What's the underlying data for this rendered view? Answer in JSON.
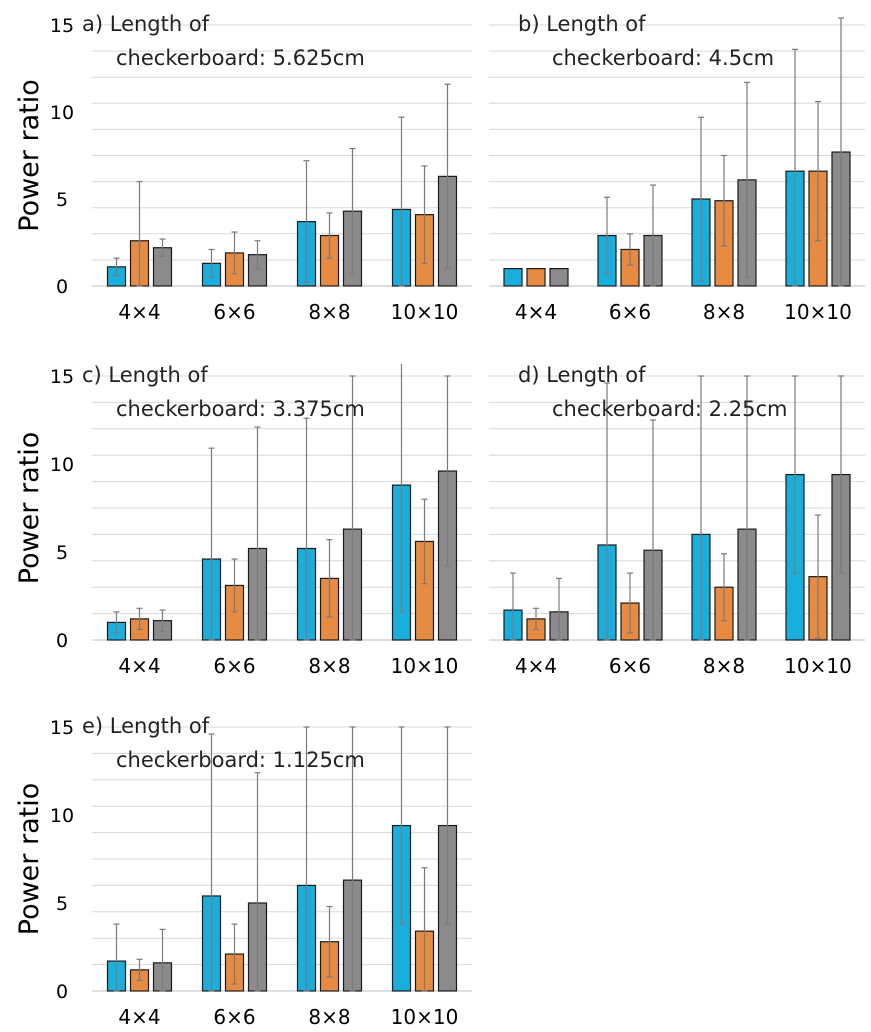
{
  "chart_data": [
    {
      "type": "bar",
      "title": "a) Length of",
      "subtitle": "checkerboard: 5.625cm",
      "ylabel": "Power ratio",
      "categories": [
        "4×4",
        "6×6",
        "8×8",
        "10×10"
      ],
      "ylim": [
        0,
        15
      ],
      "yticks": [
        0,
        5,
        10,
        15
      ],
      "grid": true,
      "series": [
        {
          "color": "#1aaedc",
          "values": [
            1.1,
            1.3,
            3.7,
            4.4
          ],
          "errors": [
            0.5,
            0.8,
            3.5,
            5.3
          ]
        },
        {
          "color": "#e78b43",
          "values": [
            2.6,
            1.9,
            2.9,
            4.1
          ],
          "errors": [
            3.4,
            1.2,
            1.3,
            2.8
          ]
        },
        {
          "color": "#8c8a8c",
          "values": [
            2.2,
            1.8,
            4.3,
            6.3
          ],
          "errors": [
            0.5,
            0.8,
            3.6,
            5.3
          ]
        }
      ]
    },
    {
      "type": "bar",
      "title": "b) Length of",
      "subtitle": "checkerboard: 4.5cm",
      "ylabel": "",
      "categories": [
        "4×4",
        "6×6",
        "8×8",
        "10×10"
      ],
      "ylim": [
        0,
        15
      ],
      "yticks": [],
      "grid": true,
      "series": [
        {
          "color": "#1aaedc",
          "values": [
            1.0,
            2.9,
            5.0,
            6.6
          ],
          "errors": [
            0,
            2.2,
            4.7,
            7.0
          ]
        },
        {
          "color": "#e78b43",
          "values": [
            1.0,
            2.1,
            4.9,
            6.6
          ],
          "errors": [
            0,
            0.9,
            2.6,
            4.0
          ]
        },
        {
          "color": "#8c8a8c",
          "values": [
            1.0,
            2.9,
            6.1,
            7.7
          ],
          "errors": [
            0,
            2.9,
            5.6,
            7.7
          ]
        }
      ]
    },
    {
      "type": "bar",
      "title": "c) Length of",
      "subtitle": "checkerboard: 3.375cm",
      "ylabel": "Power ratio",
      "categories": [
        "4×4",
        "6×6",
        "8×8",
        "10×10"
      ],
      "ylim": [
        0,
        15
      ],
      "yticks": [
        0,
        5,
        10,
        15
      ],
      "grid": true,
      "series": [
        {
          "color": "#1aaedc",
          "values": [
            1.0,
            4.6,
            5.2,
            8.8
          ],
          "errors": [
            0.6,
            6.3,
            7.4,
            7.2
          ]
        },
        {
          "color": "#e78b43",
          "values": [
            1.2,
            3.1,
            3.5,
            5.6
          ],
          "errors": [
            0.6,
            1.5,
            2.2,
            2.4
          ]
        },
        {
          "color": "#8c8a8c",
          "values": [
            1.1,
            5.2,
            6.3,
            9.6
          ],
          "errors": [
            0.6,
            6.9,
            8.7,
            5.4
          ]
        }
      ]
    },
    {
      "type": "bar",
      "title": "d) Length of",
      "subtitle": "checkerboard: 2.25cm",
      "ylabel": "",
      "categories": [
        "4×4",
        "6×6",
        "8×8",
        "10×10"
      ],
      "ylim": [
        0,
        15
      ],
      "yticks": [],
      "grid": true,
      "series": [
        {
          "color": "#1aaedc",
          "values": [
            1.7,
            5.4,
            6.0,
            9.4
          ],
          "errors": [
            2.1,
            9.2,
            9.0,
            5.6
          ]
        },
        {
          "color": "#e78b43",
          "values": [
            1.2,
            2.1,
            3.0,
            3.6
          ],
          "errors": [
            0.6,
            1.7,
            1.9,
            3.5
          ]
        },
        {
          "color": "#8c8a8c",
          "values": [
            1.6,
            5.1,
            6.3,
            9.4
          ],
          "errors": [
            1.9,
            7.4,
            8.7,
            5.6
          ]
        }
      ]
    },
    {
      "type": "bar",
      "title": "e) Length of",
      "subtitle": "checkerboard: 1.125cm",
      "ylabel": "Power ratio",
      "categories": [
        "4×4",
        "6×6",
        "8×8",
        "10×10"
      ],
      "ylim": [
        0,
        15
      ],
      "yticks": [
        0,
        5,
        10,
        15
      ],
      "grid": true,
      "series": [
        {
          "color": "#1aaedc",
          "values": [
            1.7,
            5.4,
            6.0,
            9.4
          ],
          "errors": [
            2.1,
            9.2,
            9.0,
            5.6
          ]
        },
        {
          "color": "#e78b43",
          "values": [
            1.2,
            2.1,
            2.8,
            3.4
          ],
          "errors": [
            0.6,
            1.7,
            2.0,
            3.6
          ]
        },
        {
          "color": "#8c8a8c",
          "values": [
            1.6,
            5.0,
            6.3,
            9.4
          ],
          "errors": [
            1.9,
            7.4,
            8.7,
            5.6
          ]
        }
      ]
    }
  ]
}
